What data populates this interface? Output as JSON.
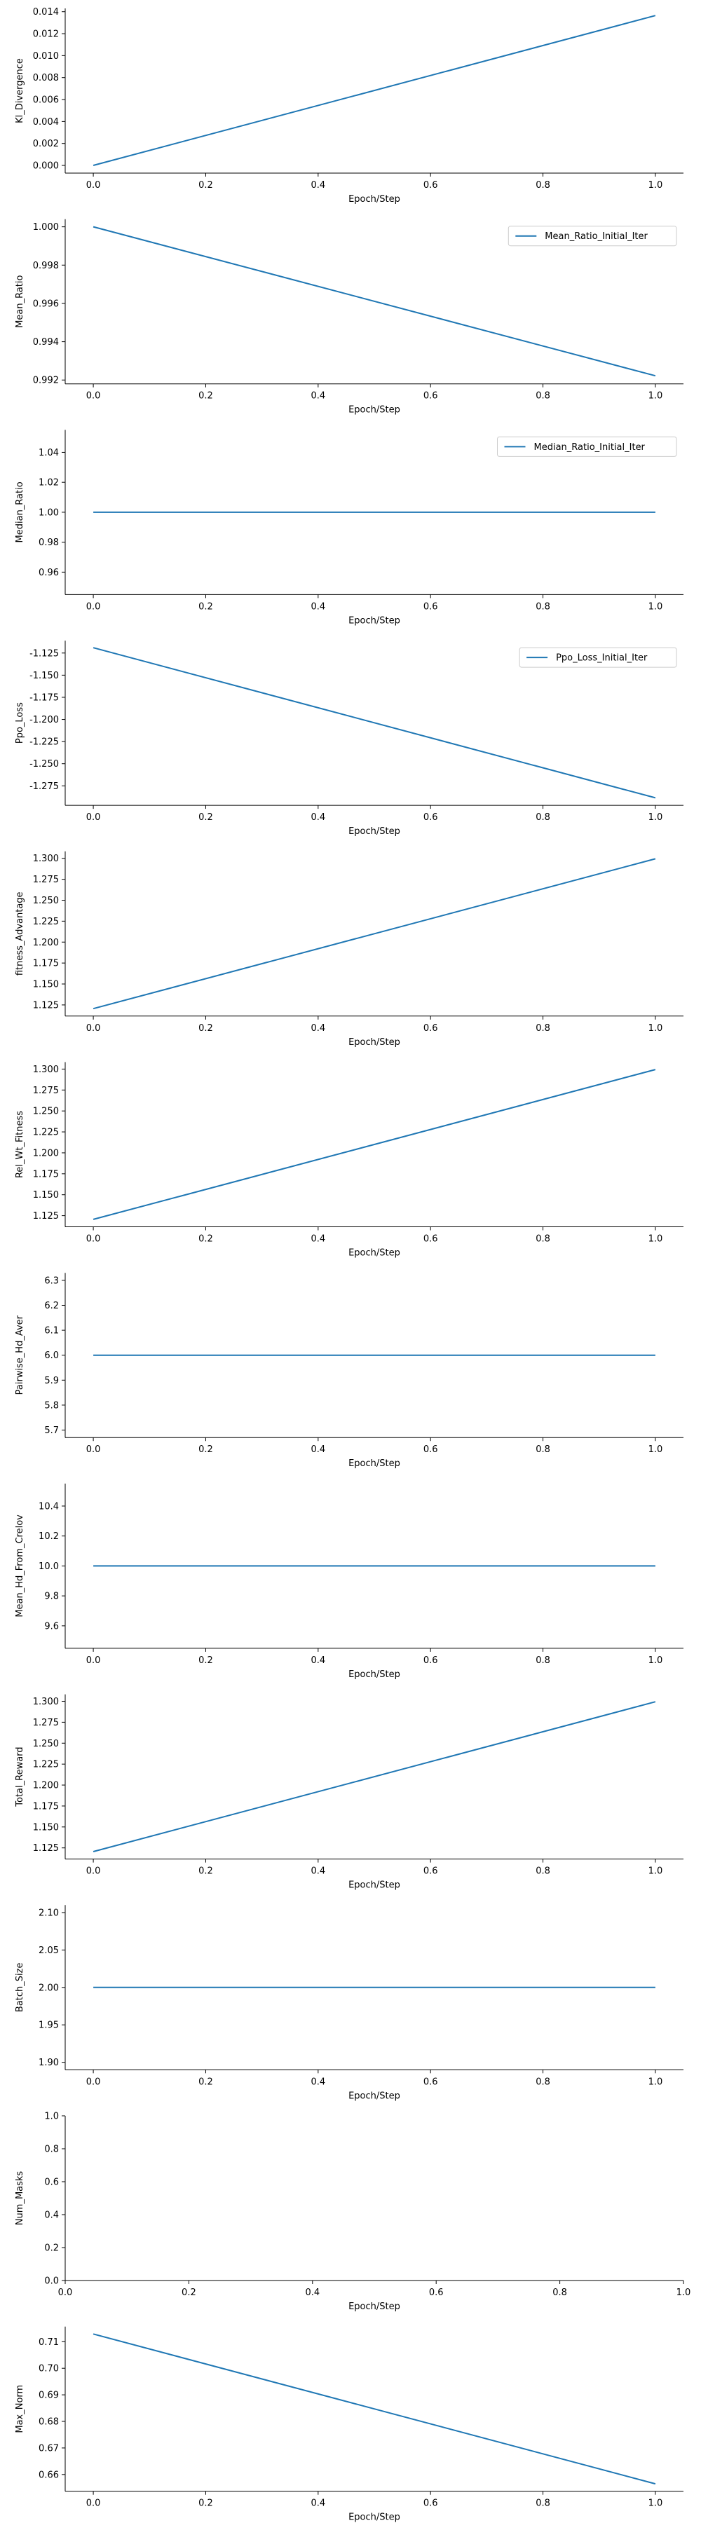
{
  "colors": {
    "series": "#1f77b4",
    "axis": "#000000",
    "legend_border": "#cccccc"
  },
  "chart_data": [
    {
      "type": "line",
      "title": "",
      "xlabel": "Epoch/Step",
      "ylabel": "Kl_Divergence",
      "x": [
        0.0,
        1.0
      ],
      "xlim": [
        -0.05,
        1.05
      ],
      "xticks": [
        "0.0",
        "0.2",
        "0.4",
        "0.6",
        "0.8",
        "1.0"
      ],
      "yticks": [
        "0.000",
        "0.002",
        "0.004",
        "0.006",
        "0.008",
        "0.010",
        "0.012",
        "0.014"
      ],
      "ylim": [
        -0.0007,
        0.0143
      ],
      "grid": false,
      "legend": null,
      "series": [
        {
          "values": [
            0.0,
            0.01365
          ]
        }
      ]
    },
    {
      "type": "line",
      "title": "",
      "xlabel": "Epoch/Step",
      "ylabel": "Mean_Ratio",
      "x": [
        0.0,
        1.0
      ],
      "xlim": [
        -0.05,
        1.05
      ],
      "xticks": [
        "0.0",
        "0.2",
        "0.4",
        "0.6",
        "0.8",
        "1.0"
      ],
      "yticks": [
        "0.992",
        "0.994",
        "0.996",
        "0.998",
        "1.000"
      ],
      "ylim": [
        0.9918,
        1.0004
      ],
      "grid": false,
      "legend": "upper right",
      "series": [
        {
          "name": "Mean_Ratio_Initial_Iter",
          "values": [
            1.0,
            0.99222
          ]
        }
      ]
    },
    {
      "type": "line",
      "title": "",
      "xlabel": "Epoch/Step",
      "ylabel": "Median_Ratio",
      "x": [
        0.0,
        1.0
      ],
      "xlim": [
        -0.05,
        1.05
      ],
      "xticks": [
        "0.0",
        "0.2",
        "0.4",
        "0.6",
        "0.8",
        "1.0"
      ],
      "yticks": [
        "0.96",
        "0.98",
        "1.00",
        "1.02",
        "1.04"
      ],
      "ylim": [
        0.945,
        1.055
      ],
      "grid": false,
      "legend": "upper right",
      "series": [
        {
          "name": "Median_Ratio_Initial_Iter",
          "values": [
            1.0,
            1.0
          ]
        }
      ]
    },
    {
      "type": "line",
      "title": "",
      "xlabel": "Epoch/Step",
      "ylabel": "Ppo_Loss",
      "x": [
        0.0,
        1.0
      ],
      "xlim": [
        -0.05,
        1.05
      ],
      "xticks": [
        "0.0",
        "0.2",
        "0.4",
        "0.6",
        "0.8",
        "1.0"
      ],
      "yticks": [
        "-1.125",
        "-1.150",
        "-1.175",
        "-1.200",
        "-1.225",
        "-1.250",
        "-1.275"
      ],
      "ylim": [
        -1.297,
        -1.111
      ],
      "grid": false,
      "legend": "upper right",
      "series": [
        {
          "name": "Ppo_Loss_Initial_Iter",
          "values": [
            -1.119,
            -1.2885
          ]
        }
      ]
    },
    {
      "type": "line",
      "title": "",
      "xlabel": "Epoch/Step",
      "ylabel": "fitness_Advantage",
      "x": [
        0.0,
        1.0
      ],
      "xlim": [
        -0.05,
        1.05
      ],
      "xticks": [
        "0.0",
        "0.2",
        "0.4",
        "0.6",
        "0.8",
        "1.0"
      ],
      "yticks": [
        "1.125",
        "1.150",
        "1.175",
        "1.200",
        "1.225",
        "1.250",
        "1.275",
        "1.300"
      ],
      "ylim": [
        1.1117,
        1.3083
      ],
      "grid": false,
      "legend": null,
      "series": [
        {
          "values": [
            1.1206,
            1.2994
          ]
        }
      ]
    },
    {
      "type": "line",
      "title": "",
      "xlabel": "Epoch/Step",
      "ylabel": "Rel_Wt_Fitness",
      "x": [
        0.0,
        1.0
      ],
      "xlim": [
        -0.05,
        1.05
      ],
      "xticks": [
        "0.0",
        "0.2",
        "0.4",
        "0.6",
        "0.8",
        "1.0"
      ],
      "yticks": [
        "1.125",
        "1.150",
        "1.175",
        "1.200",
        "1.225",
        "1.250",
        "1.275",
        "1.300"
      ],
      "ylim": [
        1.1117,
        1.3083
      ],
      "grid": false,
      "legend": null,
      "series": [
        {
          "values": [
            1.1206,
            1.2994
          ]
        }
      ]
    },
    {
      "type": "line",
      "title": "",
      "xlabel": "Epoch/Step",
      "ylabel": "Pairwise_Hd_Aver",
      "x": [
        0.0,
        1.0
      ],
      "xlim": [
        -0.05,
        1.05
      ],
      "xticks": [
        "0.0",
        "0.2",
        "0.4",
        "0.6",
        "0.8",
        "1.0"
      ],
      "yticks": [
        "5.7",
        "5.8",
        "5.9",
        "6.0",
        "6.1",
        "6.2",
        "6.3"
      ],
      "ylim": [
        5.67,
        6.33
      ],
      "grid": false,
      "legend": null,
      "series": [
        {
          "values": [
            6.0,
            6.0
          ]
        }
      ]
    },
    {
      "type": "line",
      "title": "",
      "xlabel": "Epoch/Step",
      "ylabel": "Mean_Hd_From_Crelov",
      "x": [
        0.0,
        1.0
      ],
      "xlim": [
        -0.05,
        1.05
      ],
      "xticks": [
        "0.0",
        "0.2",
        "0.4",
        "0.6",
        "0.8",
        "1.0"
      ],
      "yticks": [
        "9.6",
        "9.8",
        "10.0",
        "10.2",
        "10.4"
      ],
      "ylim": [
        9.45,
        10.55
      ],
      "grid": false,
      "legend": null,
      "series": [
        {
          "values": [
            10.0,
            10.0
          ]
        }
      ]
    },
    {
      "type": "line",
      "title": "",
      "xlabel": "Epoch/Step",
      "ylabel": "Total_Reward",
      "x": [
        0.0,
        1.0
      ],
      "xlim": [
        -0.05,
        1.05
      ],
      "xticks": [
        "0.0",
        "0.2",
        "0.4",
        "0.6",
        "0.8",
        "1.0"
      ],
      "yticks": [
        "1.125",
        "1.150",
        "1.175",
        "1.200",
        "1.225",
        "1.250",
        "1.275",
        "1.300"
      ],
      "ylim": [
        1.1117,
        1.3083
      ],
      "grid": false,
      "legend": null,
      "series": [
        {
          "values": [
            1.1206,
            1.2994
          ]
        }
      ]
    },
    {
      "type": "line",
      "title": "",
      "xlabel": "Epoch/Step",
      "ylabel": "Batch_Size",
      "x": [
        0.0,
        1.0
      ],
      "xlim": [
        -0.05,
        1.05
      ],
      "xticks": [
        "0.0",
        "0.2",
        "0.4",
        "0.6",
        "0.8",
        "1.0"
      ],
      "yticks": [
        "1.90",
        "1.95",
        "2.00",
        "2.05",
        "2.10"
      ],
      "ylim": [
        1.89,
        2.11
      ],
      "grid": false,
      "legend": null,
      "series": [
        {
          "values": [
            2.0,
            2.0
          ]
        }
      ]
    },
    {
      "type": "line",
      "title": "",
      "xlabel": "Epoch/Step",
      "ylabel": "Num_Masks",
      "x": [],
      "xlim": [
        0.0,
        1.0
      ],
      "xticks": [
        "0.0",
        "0.2",
        "0.4",
        "0.6",
        "0.8",
        "1.0"
      ],
      "yticks": [
        "0.0",
        "0.2",
        "0.4",
        "0.6",
        "0.8",
        "1.0"
      ],
      "ylim": [
        0.0,
        1.0
      ],
      "grid": false,
      "legend": null,
      "series": []
    },
    {
      "type": "line",
      "title": "",
      "xlabel": "Epoch/Step",
      "ylabel": "Max_Norm",
      "x": [
        0.0,
        1.0
      ],
      "xlim": [
        -0.05,
        1.05
      ],
      "xticks": [
        "0.0",
        "0.2",
        "0.4",
        "0.6",
        "0.8",
        "1.0"
      ],
      "yticks": [
        "0.66",
        "0.67",
        "0.68",
        "0.69",
        "0.70",
        "0.71"
      ],
      "ylim": [
        0.6537,
        0.7157
      ],
      "grid": false,
      "legend": null,
      "series": [
        {
          "values": [
            0.7129,
            0.6565
          ]
        }
      ]
    }
  ]
}
